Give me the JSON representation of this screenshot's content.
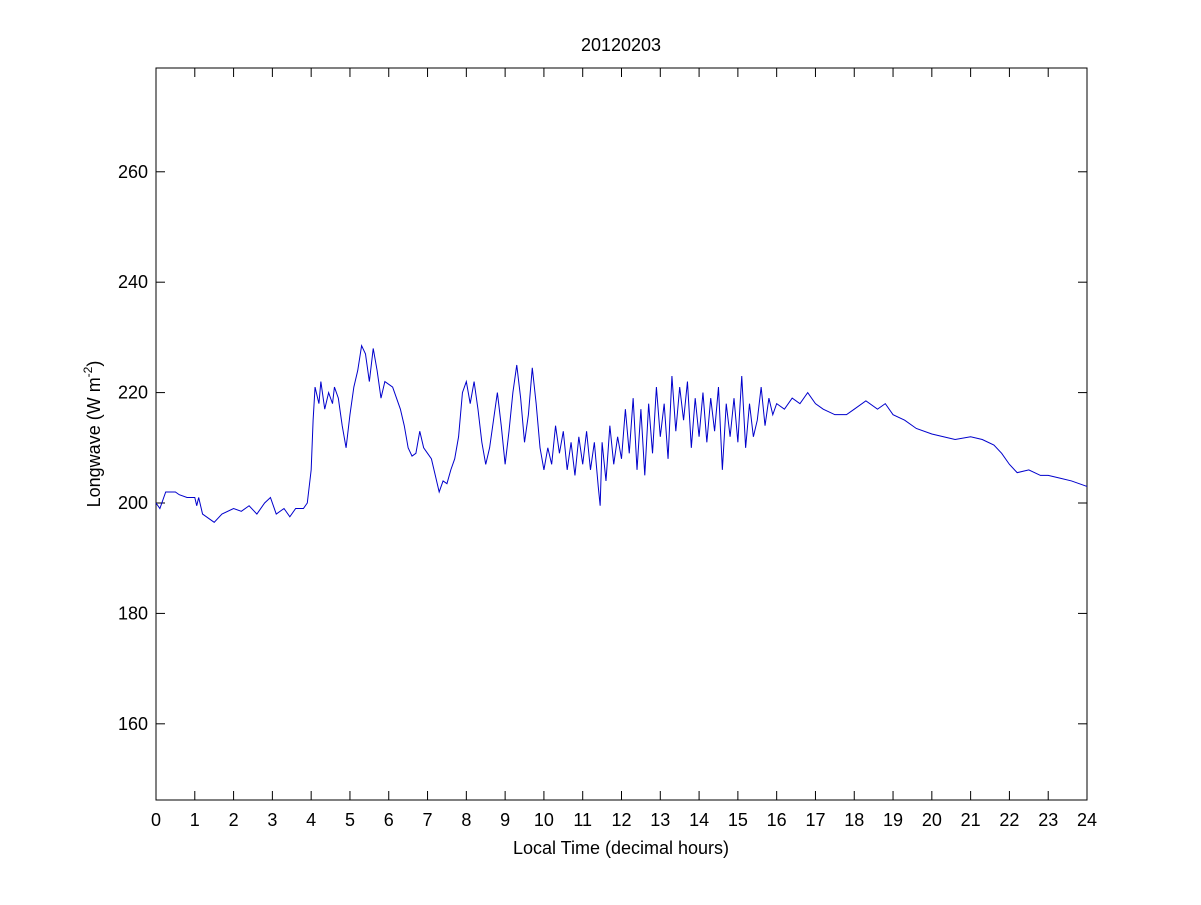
{
  "chart_data": {
    "type": "line",
    "title": "20120203",
    "xlabel": "Local Time (decimal hours)",
    "ylabel": [
      "Longwave (W m",
      "-2",
      ")"
    ],
    "xlim": [
      0,
      24
    ],
    "xticks": [
      0,
      1,
      2,
      3,
      4,
      5,
      6,
      7,
      8,
      9,
      10,
      11,
      12,
      13,
      14,
      15,
      16,
      17,
      18,
      19,
      20,
      21,
      22,
      23,
      24
    ],
    "ylim": [
      146.2,
      278.8
    ],
    "yticks": [
      160,
      180,
      200,
      220,
      240,
      260
    ],
    "series": [
      {
        "color": "#0000cc",
        "x": [
          0,
          0.1,
          0.25,
          0.5,
          0.6,
          0.8,
          1.0,
          1.05,
          1.1,
          1.2,
          1.4,
          1.5,
          1.7,
          2.0,
          2.2,
          2.4,
          2.6,
          2.8,
          2.95,
          3.1,
          3.3,
          3.45,
          3.6,
          3.8,
          3.9,
          4.0,
          4.05,
          4.1,
          4.2,
          4.25,
          4.35,
          4.45,
          4.55,
          4.6,
          4.7,
          4.8,
          4.9,
          5.0,
          5.1,
          5.2,
          5.3,
          5.4,
          5.5,
          5.6,
          5.7,
          5.8,
          5.9,
          6.1,
          6.3,
          6.4,
          6.5,
          6.6,
          6.7,
          6.8,
          6.9,
          7.0,
          7.1,
          7.2,
          7.3,
          7.4,
          7.5,
          7.6,
          7.7,
          7.8,
          7.9,
          8.0,
          8.1,
          8.2,
          8.3,
          8.4,
          8.5,
          8.6,
          8.7,
          8.8,
          8.9,
          9.0,
          9.1,
          9.2,
          9.3,
          9.4,
          9.5,
          9.6,
          9.7,
          9.8,
          9.9,
          10.0,
          10.1,
          10.2,
          10.3,
          10.4,
          10.5,
          10.6,
          10.7,
          10.8,
          10.9,
          11.0,
          11.1,
          11.2,
          11.3,
          11.4,
          11.45,
          11.5,
          11.6,
          11.7,
          11.8,
          11.9,
          12.0,
          12.1,
          12.2,
          12.3,
          12.4,
          12.5,
          12.6,
          12.7,
          12.8,
          12.9,
          13.0,
          13.1,
          13.2,
          13.3,
          13.4,
          13.5,
          13.6,
          13.7,
          13.8,
          13.9,
          14.0,
          14.1,
          14.2,
          14.3,
          14.4,
          14.5,
          14.6,
          14.7,
          14.8,
          14.9,
          15.0,
          15.1,
          15.2,
          15.3,
          15.4,
          15.5,
          15.6,
          15.7,
          15.8,
          15.9,
          16.0,
          16.2,
          16.4,
          16.6,
          16.8,
          17.0,
          17.2,
          17.5,
          17.8,
          18.0,
          18.3,
          18.6,
          18.8,
          19.0,
          19.3,
          19.6,
          20.0,
          20.3,
          20.6,
          21.0,
          21.3,
          21.6,
          21.8,
          22.0,
          22.2,
          22.5,
          22.8,
          23.0,
          23.3,
          23.6,
          23.8,
          24.0
        ],
        "values": [
          200,
          199,
          202,
          202,
          201.5,
          201,
          201,
          199.5,
          201,
          198,
          197,
          196.5,
          198,
          199,
          198.5,
          199.5,
          198,
          200,
          201,
          198,
          199,
          197.5,
          199,
          199,
          200,
          206,
          215,
          221,
          218,
          222,
          217,
          220,
          218,
          221,
          219,
          214,
          210,
          216,
          221,
          224,
          228.5,
          227,
          222,
          228,
          224,
          219,
          222,
          221,
          217,
          214,
          210,
          208.5,
          209,
          213,
          210,
          209,
          208,
          205,
          202,
          204,
          203.5,
          206,
          208,
          212,
          220,
          222,
          218,
          222,
          217,
          211,
          207,
          210,
          215,
          220,
          214,
          207,
          213,
          220,
          225,
          219,
          211,
          216,
          224.5,
          218,
          210,
          206,
          210,
          207,
          214,
          209,
          213,
          206,
          211,
          205,
          212,
          207,
          213,
          206,
          211,
          203,
          199.5,
          211,
          204,
          214,
          207,
          212,
          208,
          217,
          209,
          219,
          206,
          217,
          205,
          218,
          209,
          221,
          212,
          218,
          208,
          223,
          213,
          221,
          215,
          222,
          210,
          219,
          212,
          220,
          211,
          219,
          213,
          221,
          206,
          218,
          212,
          219,
          211,
          223,
          210,
          218,
          212,
          215,
          221,
          214,
          219,
          216,
          218,
          217,
          219,
          218,
          220,
          218,
          217,
          216,
          216,
          217,
          218.5,
          217,
          218,
          216,
          215,
          213.5,
          212.5,
          212,
          211.5,
          212,
          211.5,
          210.5,
          209,
          207,
          205.5,
          206,
          205,
          205,
          204.5,
          204,
          203.5,
          203
        ]
      }
    ]
  }
}
